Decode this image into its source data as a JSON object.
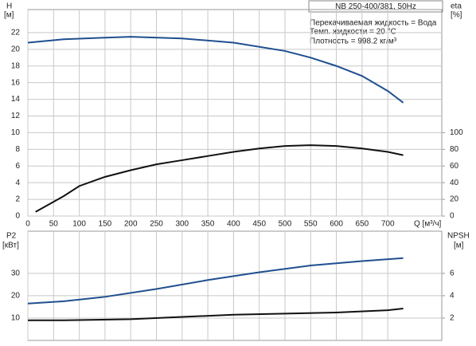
{
  "chart_data": [
    {
      "type": "line",
      "title": "NB 250-400/381, 50Hz",
      "annotations": [
        "Перекачиваемая жидкость = Вода",
        "Темп. жидкости = 20 °C",
        "Плотность = 998.2 кг/м³"
      ],
      "x_label": "Q [м³/ч]",
      "y_label": "H",
      "y_unit": "[м]",
      "y2_label": "eta",
      "y2_unit": "[%]",
      "xlim": [
        0,
        805
      ],
      "xticks": [
        0,
        50,
        100,
        150,
        200,
        250,
        300,
        350,
        400,
        450,
        500,
        550,
        600,
        650,
        700
      ],
      "ylim": [
        0,
        24
      ],
      "yticks": [
        0,
        2,
        4,
        6,
        8,
        10,
        12,
        14,
        16,
        18,
        20,
        22
      ],
      "y2lim": [
        0,
        240
      ],
      "y2ticks": [
        0,
        20,
        40,
        60,
        80,
        100
      ],
      "grid": true,
      "series": [
        {
          "color": "#1f4f8f",
          "x": [
            0,
            70,
            150,
            200,
            300,
            400,
            500,
            550,
            600,
            650,
            700,
            730
          ],
          "values": [
            20.8,
            21.2,
            21.4,
            21.5,
            21.3,
            20.8,
            19.8,
            19.0,
            18.0,
            16.8,
            15.0,
            13.6
          ]
        },
        {
          "color": "#111111",
          "axis": "y2",
          "x": [
            15,
            70,
            100,
            150,
            200,
            250,
            300,
            350,
            400,
            450,
            500,
            550,
            600,
            650,
            700,
            730
          ],
          "values": [
            5,
            24,
            36,
            47,
            55,
            62,
            67,
            72,
            77,
            81,
            84,
            85,
            84,
            81,
            77,
            73
          ]
        }
      ]
    },
    {
      "type": "line",
      "y_label": "P2",
      "y_unit": "[кВт]",
      "y2_label": "NPSH",
      "y2_unit": "[м]",
      "xlim": [
        0,
        805
      ],
      "ylim": [
        0,
        46
      ],
      "yticks": [
        10,
        20,
        30
      ],
      "y2lim": [
        0,
        9.2
      ],
      "y2ticks": [
        2,
        4,
        6
      ],
      "grid": true,
      "series": [
        {
          "color": "#1f4f8f",
          "x": [
            0,
            70,
            150,
            250,
            350,
            450,
            550,
            650,
            730
          ],
          "values": [
            16.5,
            17.5,
            19.5,
            23,
            27,
            30.5,
            33.5,
            35.5,
            36.8
          ]
        },
        {
          "color": "#111111",
          "axis": "y2",
          "x": [
            0,
            70,
            200,
            300,
            400,
            500,
            600,
            700,
            730
          ],
          "values": [
            1.8,
            1.8,
            1.9,
            2.1,
            2.3,
            2.4,
            2.5,
            2.7,
            2.85
          ]
        }
      ]
    }
  ]
}
